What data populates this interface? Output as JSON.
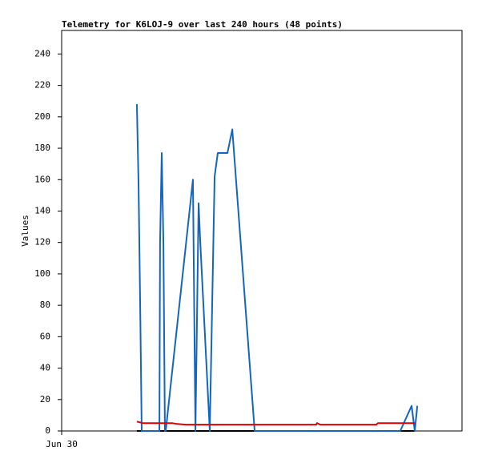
{
  "chart_data": {
    "type": "line",
    "title": "Telemetry for K6LOJ-9 over last 240 hours (48 points)",
    "y_label": "Values",
    "xlim": [
      0,
      240
    ],
    "xticks": [
      {
        "value": 0,
        "label": "Jun 30"
      }
    ],
    "ylim": [
      0,
      255
    ],
    "yticks": [
      0,
      20,
      40,
      60,
      80,
      100,
      120,
      140,
      160,
      180,
      200,
      220,
      240
    ],
    "series": [
      {
        "color": "#000000",
        "x": [
          45.1,
          211.7
        ],
        "values": [
          0,
          0
        ]
      },
      {
        "color": "#1565c0",
        "x": [
          45.1,
          46.1,
          47.0,
          48.0,
          58.6,
          59.0,
          60.0,
          61.0,
          61.9,
          62.4,
          78.7,
          80.2,
          82.1,
          83.1,
          88.8,
          91.7,
          93.6,
          99.4,
          102.3,
          115.7,
          203.0,
          209.8,
          211.7,
          213.2
        ],
        "values": [
          208,
          157,
          86,
          0,
          0,
          120,
          177,
          120,
          0,
          0,
          160,
          0,
          145,
          120,
          0,
          162,
          177,
          177,
          192,
          0,
          0,
          16,
          0,
          16
        ]
      },
      {
        "color": "#e00000",
        "x": [
          45.1,
          48.5,
          66.3,
          68.7,
          74.4,
          152.6,
          153.1,
          155.0,
          188.6,
          189.6,
          211.7
        ],
        "values": [
          6,
          5,
          5,
          4.5,
          4,
          4,
          5,
          4,
          4,
          5,
          5
        ]
      }
    ]
  }
}
